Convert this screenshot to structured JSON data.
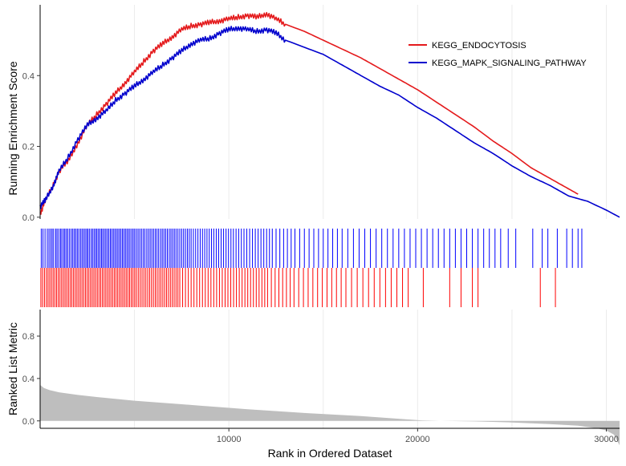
{
  "chart_data": {
    "type": "line",
    "xlabel": "Rank in Ordered Dataset",
    "xlim": [
      0,
      30700
    ],
    "x_ticks": [
      "10000",
      "20000",
      "30000"
    ],
    "x_tick_values": [
      10000,
      20000,
      30000
    ],
    "grid": "vertical major and minor lines",
    "legend_position": "top-right",
    "panels": {
      "es": {
        "ylabel": "Running Enrichment Score",
        "ylim": [
          -0.005,
          0.6
        ],
        "y_ticks": [
          "0.0",
          "0.2",
          "0.4"
        ],
        "y_tick_values": [
          0.0,
          0.2,
          0.4
        ]
      },
      "metric": {
        "ylabel": "Ranked List Metric",
        "ylim": [
          -0.07,
          1.05
        ],
        "y_ticks": [
          "0.0",
          "0.4",
          "0.8"
        ],
        "y_tick_values": [
          0.0,
          0.4,
          0.8
        ],
        "fill_color": "#bebebe",
        "profile": {
          "x": [
            0,
            200,
            500,
            1000,
            2000,
            3000,
            5000,
            8000,
            11000,
            14000,
            17000,
            19000,
            20200,
            21200,
            23000,
            25000,
            27000,
            28500,
            29500,
            30000,
            30400,
            30700
          ],
          "y": [
            0.34,
            0.31,
            0.29,
            0.27,
            0.245,
            0.225,
            0.19,
            0.15,
            0.11,
            0.075,
            0.045,
            0.02,
            0.005,
            0.0,
            -0.005,
            -0.015,
            -0.03,
            -0.045,
            -0.07,
            -0.09,
            -0.13,
            -0.23
          ]
        }
      }
    },
    "series": [
      {
        "name": "KEGG_ENDOCYTOSIS",
        "color": "#e41a1c",
        "x": [
          0,
          300,
          700,
          1000,
          1500,
          2000,
          2500,
          3000,
          3500,
          4000,
          4500,
          5000,
          5500,
          6000,
          6500,
          7000,
          7500,
          8000,
          8500,
          9000,
          9500,
          10000,
          10500,
          11000,
          11500,
          12000,
          12500,
          13000,
          14000,
          15000,
          16000,
          17000,
          18000,
          19000,
          20000,
          21000,
          22000,
          23000,
          24000,
          25000,
          26000,
          27000,
          28000,
          28500
        ],
        "y": [
          0.01,
          0.05,
          0.09,
          0.13,
          0.16,
          0.21,
          0.26,
          0.29,
          0.32,
          0.35,
          0.38,
          0.41,
          0.44,
          0.47,
          0.49,
          0.51,
          0.53,
          0.54,
          0.545,
          0.55,
          0.555,
          0.56,
          0.565,
          0.57,
          0.565,
          0.575,
          0.56,
          0.545,
          0.525,
          0.5,
          0.475,
          0.45,
          0.42,
          0.39,
          0.36,
          0.325,
          0.29,
          0.255,
          0.215,
          0.18,
          0.14,
          0.11,
          0.08,
          0.065
        ]
      },
      {
        "name": "KEGG_MAPK_SIGNALING_PATHWAY",
        "color": "#0000cd",
        "x": [
          0,
          300,
          700,
          1000,
          1500,
          2000,
          2500,
          3000,
          3500,
          4000,
          4500,
          5000,
          5500,
          6000,
          6500,
          7000,
          7500,
          8000,
          8500,
          9000,
          9500,
          10000,
          10500,
          11000,
          11500,
          12000,
          12500,
          13000,
          14000,
          15000,
          16000,
          17000,
          18000,
          19000,
          20000,
          21000,
          22000,
          23000,
          24000,
          25000,
          26000,
          27000,
          28000,
          29000,
          30000,
          30700
        ],
        "y": [
          0.03,
          0.05,
          0.09,
          0.13,
          0.17,
          0.22,
          0.26,
          0.28,
          0.3,
          0.33,
          0.35,
          0.37,
          0.39,
          0.41,
          0.43,
          0.45,
          0.47,
          0.49,
          0.5,
          0.505,
          0.52,
          0.53,
          0.535,
          0.53,
          0.525,
          0.53,
          0.52,
          0.5,
          0.48,
          0.46,
          0.43,
          0.4,
          0.37,
          0.345,
          0.31,
          0.28,
          0.245,
          0.21,
          0.18,
          0.145,
          0.115,
          0.09,
          0.06,
          0.045,
          0.02,
          0.0
        ]
      }
    ],
    "hits": [
      {
        "series": "KEGG_MAPK_SIGNALING_PATHWAY",
        "color": "#0000ff",
        "positions": [
          60,
          150,
          260,
          380,
          470,
          560,
          640,
          720,
          830,
          900,
          990,
          1080,
          1150,
          1240,
          1310,
          1390,
          1470,
          1560,
          1650,
          1730,
          1810,
          1890,
          1970,
          2050,
          2140,
          2220,
          2300,
          2380,
          2460,
          2530,
          2610,
          2700,
          2780,
          2860,
          2940,
          3010,
          3090,
          3170,
          3250,
          3320,
          3400,
          3480,
          3560,
          3640,
          3720,
          3800,
          3880,
          3960,
          4040,
          4120,
          4200,
          4280,
          4360,
          4440,
          4520,
          4600,
          4680,
          4760,
          4850,
          4930,
          5010,
          5100,
          5190,
          5280,
          5370,
          5460,
          5550,
          5650,
          5740,
          5830,
          5920,
          6010,
          6100,
          6190,
          6280,
          6380,
          6470,
          6560,
          6650,
          6740,
          6840,
          6930,
          7020,
          7110,
          7200,
          7300,
          7400,
          7500,
          7600,
          7700,
          7800,
          7900,
          8000,
          8120,
          8240,
          8360,
          8480,
          8600,
          8720,
          8840,
          8960,
          9080,
          9200,
          9330,
          9460,
          9590,
          9720,
          9850,
          9980,
          10110,
          10240,
          10380,
          10520,
          10660,
          10800,
          10950,
          11100,
          11250,
          11400,
          11550,
          11700,
          11850,
          12000,
          12150,
          12300,
          12500,
          12700,
          12900,
          13100,
          13300,
          13500,
          13750,
          14000,
          14250,
          14500,
          14750,
          15000,
          15250,
          15500,
          15750,
          16000,
          16300,
          16600,
          16900,
          17200,
          17500,
          17800,
          18100,
          18400,
          18700,
          19000,
          19300,
          19600,
          19900,
          20200,
          20500,
          20800,
          21100,
          21400,
          21700,
          22000,
          22300,
          22600,
          22900,
          23200,
          23500,
          23800,
          24100,
          24400,
          24800,
          25200,
          26100,
          26600,
          26900,
          27400,
          27900,
          28200,
          28500,
          28700
        ]
      },
      {
        "series": "KEGG_ENDOCYTOSIS",
        "color": "#ff0000",
        "positions": [
          40,
          130,
          230,
          330,
          420,
          510,
          600,
          690,
          780,
          870,
          960,
          1050,
          1140,
          1230,
          1320,
          1410,
          1500,
          1590,
          1680,
          1770,
          1860,
          1950,
          2040,
          2130,
          2220,
          2310,
          2400,
          2490,
          2580,
          2670,
          2760,
          2850,
          2940,
          3030,
          3120,
          3210,
          3300,
          3390,
          3480,
          3570,
          3660,
          3750,
          3840,
          3930,
          4020,
          4110,
          4200,
          4290,
          4380,
          4470,
          4560,
          4650,
          4740,
          4830,
          4920,
          5010,
          5100,
          5200,
          5300,
          5400,
          5500,
          5600,
          5700,
          5800,
          5900,
          6000,
          6100,
          6200,
          6300,
          6400,
          6500,
          6600,
          6700,
          6800,
          6900,
          7000,
          7100,
          7200,
          7300,
          7400,
          7550,
          7700,
          7850,
          8000,
          8150,
          8300,
          8450,
          8600,
          8750,
          8900,
          9050,
          9200,
          9350,
          9500,
          9650,
          9800,
          9950,
          10100,
          10250,
          10400,
          10550,
          10700,
          10850,
          11000,
          11150,
          11300,
          11450,
          11600,
          11750,
          11900,
          12050,
          12250,
          12450,
          12650,
          12850,
          13050,
          13250,
          13450,
          13700,
          13950,
          14200,
          14450,
          14700,
          14950,
          15200,
          15450,
          15700,
          15950,
          16200,
          16500,
          16800,
          17100,
          17400,
          17700,
          18000,
          18300,
          18600,
          18900,
          19200,
          19500,
          20300,
          21700,
          22300,
          22900,
          23200,
          26500,
          27300
        ]
      }
    ]
  }
}
